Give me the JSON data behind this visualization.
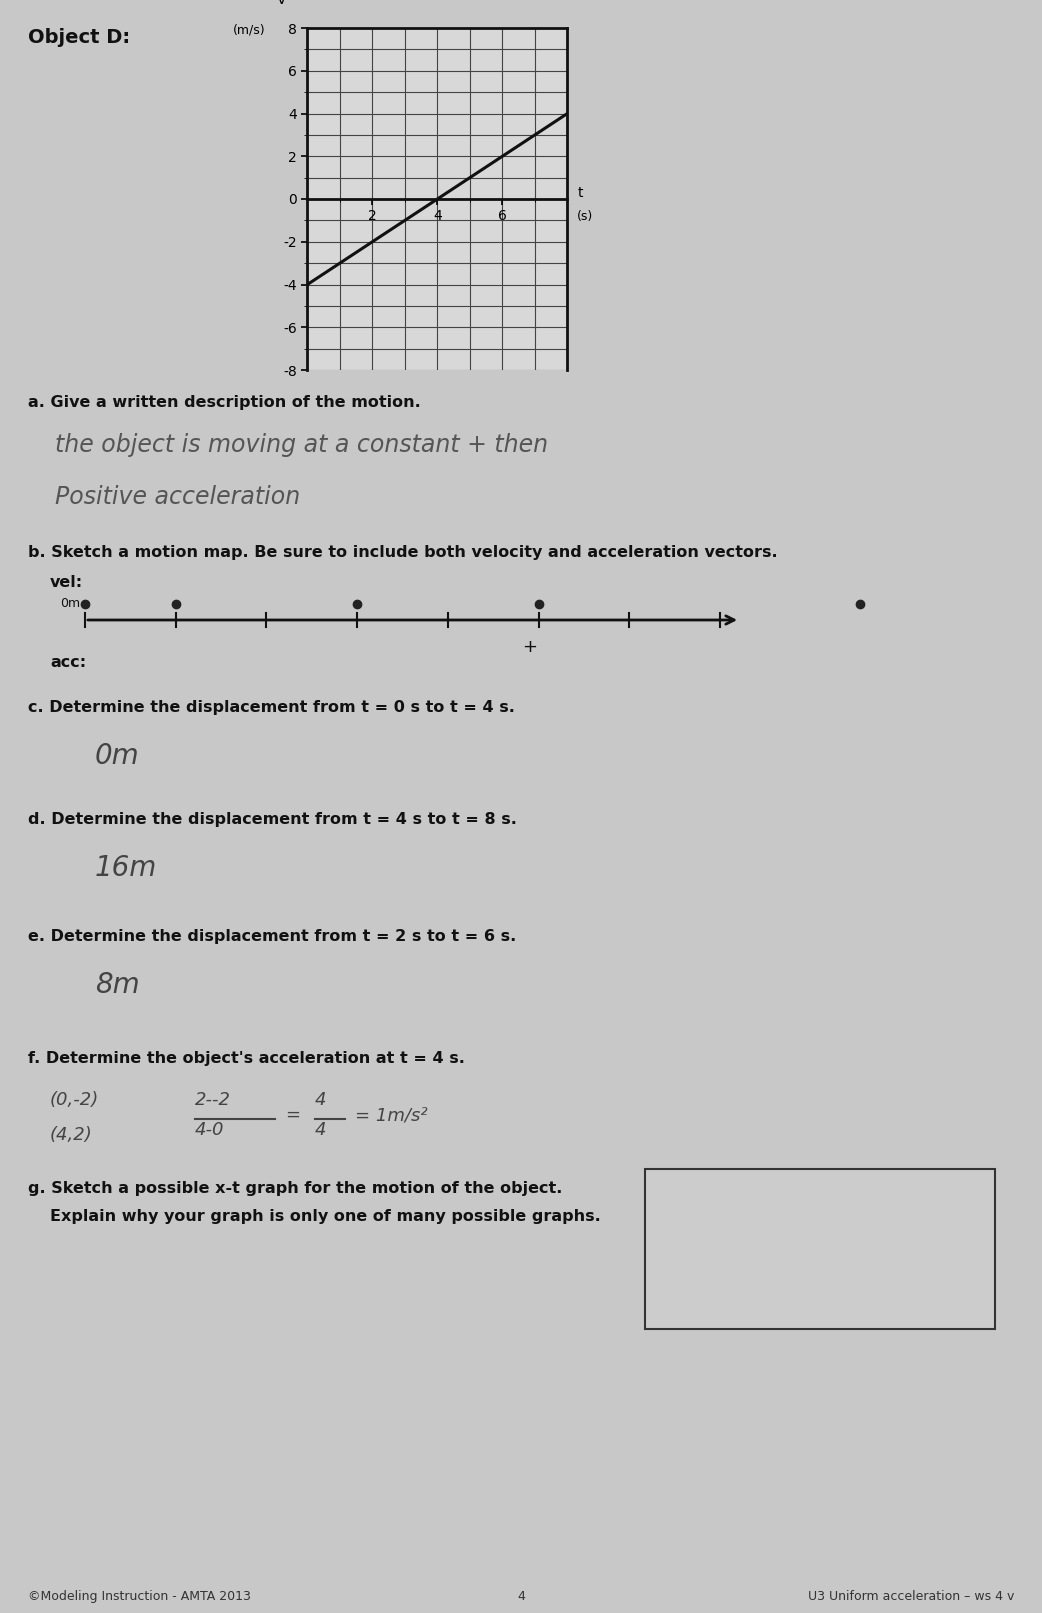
{
  "bg_color": "#c8c8c8",
  "title": "Object D:",
  "graph": {
    "xlim": [
      0,
      8
    ],
    "ylim": [
      -8,
      8
    ],
    "xtick_vals": [
      2,
      4,
      6
    ],
    "ytick_vals": [
      -8,
      -6,
      -4,
      -2,
      0,
      2,
      4,
      6,
      8
    ],
    "line_x": [
      0,
      4,
      8
    ],
    "line_y": [
      -4,
      0,
      4
    ],
    "line_color": "#111111",
    "line_width": 2.2,
    "grid_color": "#444444",
    "grid_lw": 0.8,
    "face_color": "#d8d8d8"
  },
  "question_a_label": "a. Give a written description of the motion.",
  "question_a_answer1": "the object is moving at a constant + then",
  "question_a_answer2": "Positive acceleration",
  "question_b_label": "b. Sketch a motion map. Be sure to include both velocity and acceleration vectors.",
  "vel_label": "vel:",
  "acc_label": "acc:",
  "question_c_label": "c. Determine the displacement from t = 0 s to t = 4 s.",
  "question_c_answer": "0m",
  "question_d_label": "d. Determine the displacement from t = 4 s to t = 8 s.",
  "question_d_answer": "16m",
  "question_e_label": "e. Determine the displacement from t = 2 s to t = 6 s.",
  "question_e_answer": "8m",
  "question_f_label": "f. Determine the object's acceleration at t = 4 s.",
  "question_f_pts1": "(0,-2)",
  "question_f_pts2": "(4,2)",
  "question_g_label": "g. Sketch a possible x-t graph for the motion of the object.",
  "question_g_sub": "Explain why your graph is only one of many possible graphs.",
  "footer_left": "©Modeling Instruction - AMTA 2013",
  "footer_center": "4",
  "footer_right": "U3 Uniform acceleration – ws 4 v"
}
